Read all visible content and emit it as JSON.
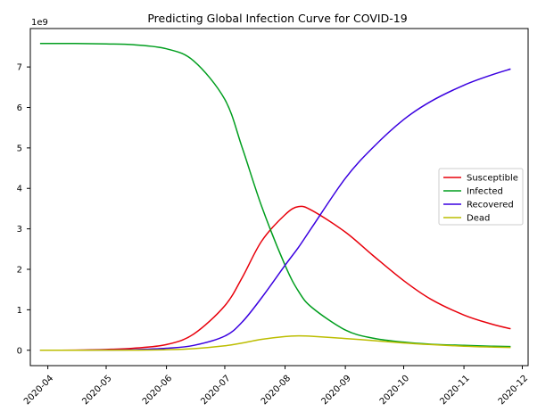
{
  "chart_data": {
    "type": "line",
    "title": "Predicting Global Infection Curve for COVID-19",
    "xlabel": "",
    "ylabel": "",
    "y_multiplier_label": "1e9",
    "x_ticks": [
      "2020-04",
      "2020-05",
      "2020-06",
      "2020-07",
      "2020-08",
      "2020-09",
      "2020-10",
      "2020-11",
      "2020-12"
    ],
    "y_ticks": [
      0,
      1,
      2,
      3,
      4,
      5,
      6,
      7
    ],
    "ylim": [
      -0.38,
      7.95
    ],
    "xlim": [
      "2020-03-23",
      "2020-12-04"
    ],
    "grid": false,
    "legend_position": "center-right",
    "series": [
      {
        "name": "Susceptible",
        "color": "#e8000b",
        "points": [
          [
            "2020-03-28",
            0
          ],
          [
            "2020-04-15",
            0.004
          ],
          [
            "2020-05-01",
            0.02
          ],
          [
            "2020-05-15",
            0.05
          ],
          [
            "2020-06-01",
            0.14
          ],
          [
            "2020-06-15",
            0.4
          ],
          [
            "2020-07-01",
            1.1
          ],
          [
            "2020-07-10",
            1.8
          ],
          [
            "2020-07-20",
            2.7
          ],
          [
            "2020-08-01",
            3.35
          ],
          [
            "2020-08-08",
            3.55
          ],
          [
            "2020-08-15",
            3.45
          ],
          [
            "2020-09-01",
            2.92
          ],
          [
            "2020-09-15",
            2.35
          ],
          [
            "2020-10-01",
            1.72
          ],
          [
            "2020-10-15",
            1.26
          ],
          [
            "2020-11-01",
            0.87
          ],
          [
            "2020-11-15",
            0.65
          ],
          [
            "2020-11-25",
            0.53
          ]
        ]
      },
      {
        "name": "Infected",
        "color": "#009e1e",
        "points": [
          [
            "2020-03-28",
            7.58
          ],
          [
            "2020-04-15",
            7.58
          ],
          [
            "2020-05-01",
            7.57
          ],
          [
            "2020-05-15",
            7.55
          ],
          [
            "2020-06-01",
            7.45
          ],
          [
            "2020-06-15",
            7.15
          ],
          [
            "2020-07-01",
            6.2
          ],
          [
            "2020-07-10",
            5.0
          ],
          [
            "2020-07-20",
            3.55
          ],
          [
            "2020-08-01",
            2.1
          ],
          [
            "2020-08-08",
            1.45
          ],
          [
            "2020-08-15",
            1.05
          ],
          [
            "2020-09-01",
            0.5
          ],
          [
            "2020-09-15",
            0.3
          ],
          [
            "2020-10-01",
            0.2
          ],
          [
            "2020-10-15",
            0.15
          ],
          [
            "2020-11-01",
            0.12
          ],
          [
            "2020-11-15",
            0.1
          ],
          [
            "2020-11-25",
            0.09
          ]
        ]
      },
      {
        "name": "Recovered",
        "color": "#3a00e0",
        "points": [
          [
            "2020-03-28",
            0
          ],
          [
            "2020-04-15",
            0.001
          ],
          [
            "2020-05-01",
            0.005
          ],
          [
            "2020-05-15",
            0.015
          ],
          [
            "2020-06-01",
            0.05
          ],
          [
            "2020-06-15",
            0.12
          ],
          [
            "2020-07-01",
            0.35
          ],
          [
            "2020-07-10",
            0.7
          ],
          [
            "2020-07-20",
            1.3
          ],
          [
            "2020-08-01",
            2.1
          ],
          [
            "2020-08-08",
            2.55
          ],
          [
            "2020-08-15",
            3.05
          ],
          [
            "2020-09-01",
            4.25
          ],
          [
            "2020-09-15",
            5.0
          ],
          [
            "2020-10-01",
            5.7
          ],
          [
            "2020-10-15",
            6.15
          ],
          [
            "2020-11-01",
            6.55
          ],
          [
            "2020-11-15",
            6.8
          ],
          [
            "2020-11-25",
            6.95
          ]
        ]
      },
      {
        "name": "Dead",
        "color": "#bcbd00",
        "points": [
          [
            "2020-03-28",
            0
          ],
          [
            "2020-04-15",
            0
          ],
          [
            "2020-05-01",
            0.002
          ],
          [
            "2020-05-15",
            0.004
          ],
          [
            "2020-06-01",
            0.015
          ],
          [
            "2020-06-15",
            0.04
          ],
          [
            "2020-07-01",
            0.11
          ],
          [
            "2020-07-10",
            0.18
          ],
          [
            "2020-07-20",
            0.27
          ],
          [
            "2020-08-01",
            0.34
          ],
          [
            "2020-08-08",
            0.355
          ],
          [
            "2020-08-15",
            0.345
          ],
          [
            "2020-09-01",
            0.29
          ],
          [
            "2020-09-15",
            0.24
          ],
          [
            "2020-10-01",
            0.18
          ],
          [
            "2020-10-15",
            0.14
          ],
          [
            "2020-11-01",
            0.1
          ],
          [
            "2020-11-15",
            0.08
          ],
          [
            "2020-11-25",
            0.07
          ]
        ]
      }
    ]
  }
}
